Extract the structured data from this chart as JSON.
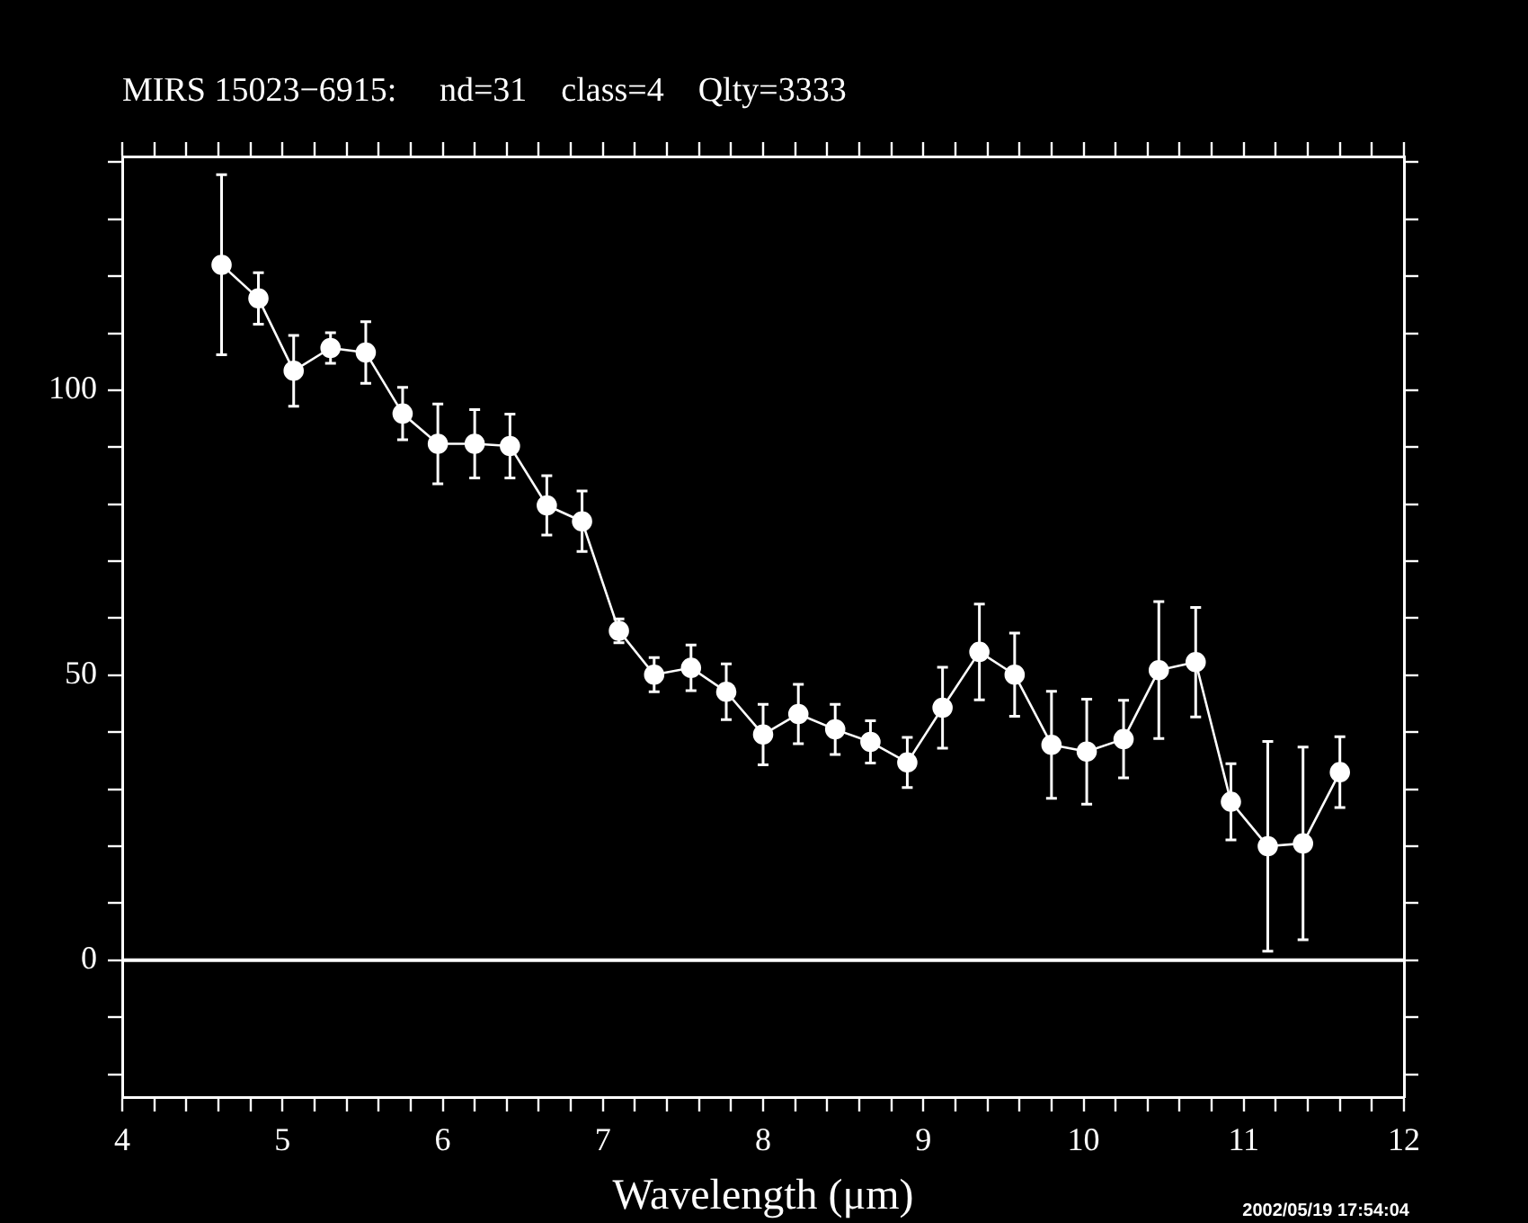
{
  "chart_data": {
    "type": "line",
    "title": "MIRS 15023−6915:     nd=31    class=4    Qlty=3333",
    "xlabel": "Wavelength (μm)",
    "annotations": [
      "2002/05/19 17:54:04"
    ],
    "x": [
      4.62,
      4.85,
      5.07,
      5.3,
      5.52,
      5.75,
      5.97,
      6.2,
      6.42,
      6.65,
      6.87,
      7.1,
      7.32,
      7.55,
      7.77,
      8.0,
      8.22,
      8.45,
      8.67,
      8.9,
      9.12,
      9.35,
      9.57,
      9.8,
      10.02,
      10.25,
      10.47,
      10.7,
      10.92,
      11.15,
      11.37,
      11.6
    ],
    "series": [
      {
        "color": "#ffffff",
        "values": [
          122.0,
          116.1,
          103.4,
          107.4,
          106.6,
          95.9,
          90.6,
          90.6,
          90.2,
          79.8,
          77.0,
          57.8,
          50.1,
          51.3,
          47.1,
          39.6,
          43.2,
          40.5,
          38.3,
          34.7,
          44.3,
          54.1,
          50.1,
          37.8,
          36.6,
          38.8,
          50.9,
          52.3,
          27.8,
          20.0,
          20.5,
          33.0
        ],
        "errors": [
          15.8,
          4.5,
          6.2,
          2.7,
          5.4,
          4.6,
          7.0,
          6.0,
          5.6,
          5.2,
          5.3,
          2.1,
          3.0,
          4.0,
          4.9,
          5.3,
          5.2,
          4.4,
          3.7,
          4.4,
          7.1,
          8.4,
          7.3,
          9.4,
          9.2,
          6.8,
          12.0,
          9.6,
          6.7,
          18.4,
          16.9,
          6.2
        ]
      }
    ],
    "xlim": [
      4,
      12
    ],
    "ylim": [
      -24,
      141
    ],
    "xticks": [
      4,
      {
        "value": 4.2,
        "label": null
      },
      {
        "value": 4.4,
        "label": null
      },
      {
        "value": 4.6,
        "label": null
      },
      {
        "value": 4.8,
        "label": null
      },
      5,
      {
        "value": 5.2,
        "label": null
      },
      {
        "value": 5.4,
        "label": null
      },
      {
        "value": 5.6,
        "label": null
      },
      {
        "value": 5.8,
        "label": null
      },
      6,
      {
        "value": 6.2,
        "label": null
      },
      {
        "value": 6.4,
        "label": null
      },
      {
        "value": 6.6,
        "label": null
      },
      {
        "value": 6.8,
        "label": null
      },
      7,
      {
        "value": 7.2,
        "label": null
      },
      {
        "value": 7.4,
        "label": null
      },
      {
        "value": 7.6,
        "label": null
      },
      {
        "value": 7.8,
        "label": null
      },
      8,
      {
        "value": 8.2,
        "label": null
      },
      {
        "value": 8.4,
        "label": null
      },
      {
        "value": 8.6,
        "label": null
      },
      {
        "value": 8.8,
        "label": null
      },
      9,
      {
        "value": 9.2,
        "label": null
      },
      {
        "value": 9.4,
        "label": null
      },
      {
        "value": 9.6,
        "label": null
      },
      {
        "value": 9.8,
        "label": null
      },
      10,
      {
        "value": 10.2,
        "label": null
      },
      {
        "value": 10.4,
        "label": null
      },
      {
        "value": 10.6,
        "label": null
      },
      {
        "value": 10.8,
        "label": null
      },
      11,
      {
        "value": 11.2,
        "label": null
      },
      {
        "value": 11.4,
        "label": null
      },
      {
        "value": 11.6,
        "label": null
      },
      {
        "value": 11.8,
        "label": null
      },
      12
    ],
    "yticks": [
      {
        "value": -20,
        "label": null
      },
      {
        "value": -10,
        "label": null
      },
      0,
      {
        "value": 10,
        "label": null
      },
      {
        "value": 20,
        "label": null
      },
      {
        "value": 30,
        "label": null
      },
      {
        "value": 40,
        "label": null
      },
      50,
      {
        "value": 60,
        "label": null
      },
      {
        "value": 70,
        "label": null
      },
      {
        "value": 80,
        "label": null
      },
      {
        "value": 90,
        "label": null
      },
      100,
      {
        "value": 110,
        "label": null
      },
      {
        "value": 120,
        "label": null
      },
      {
        "value": 130,
        "label": null
      },
      {
        "value": 140,
        "label": null
      }
    ],
    "ref_lines": [
      {
        "axis": "y",
        "value": 0,
        "color": "#ffffff"
      }
    ],
    "marker": "circle",
    "line_style": "solid",
    "grid": false,
    "legend": false
  }
}
